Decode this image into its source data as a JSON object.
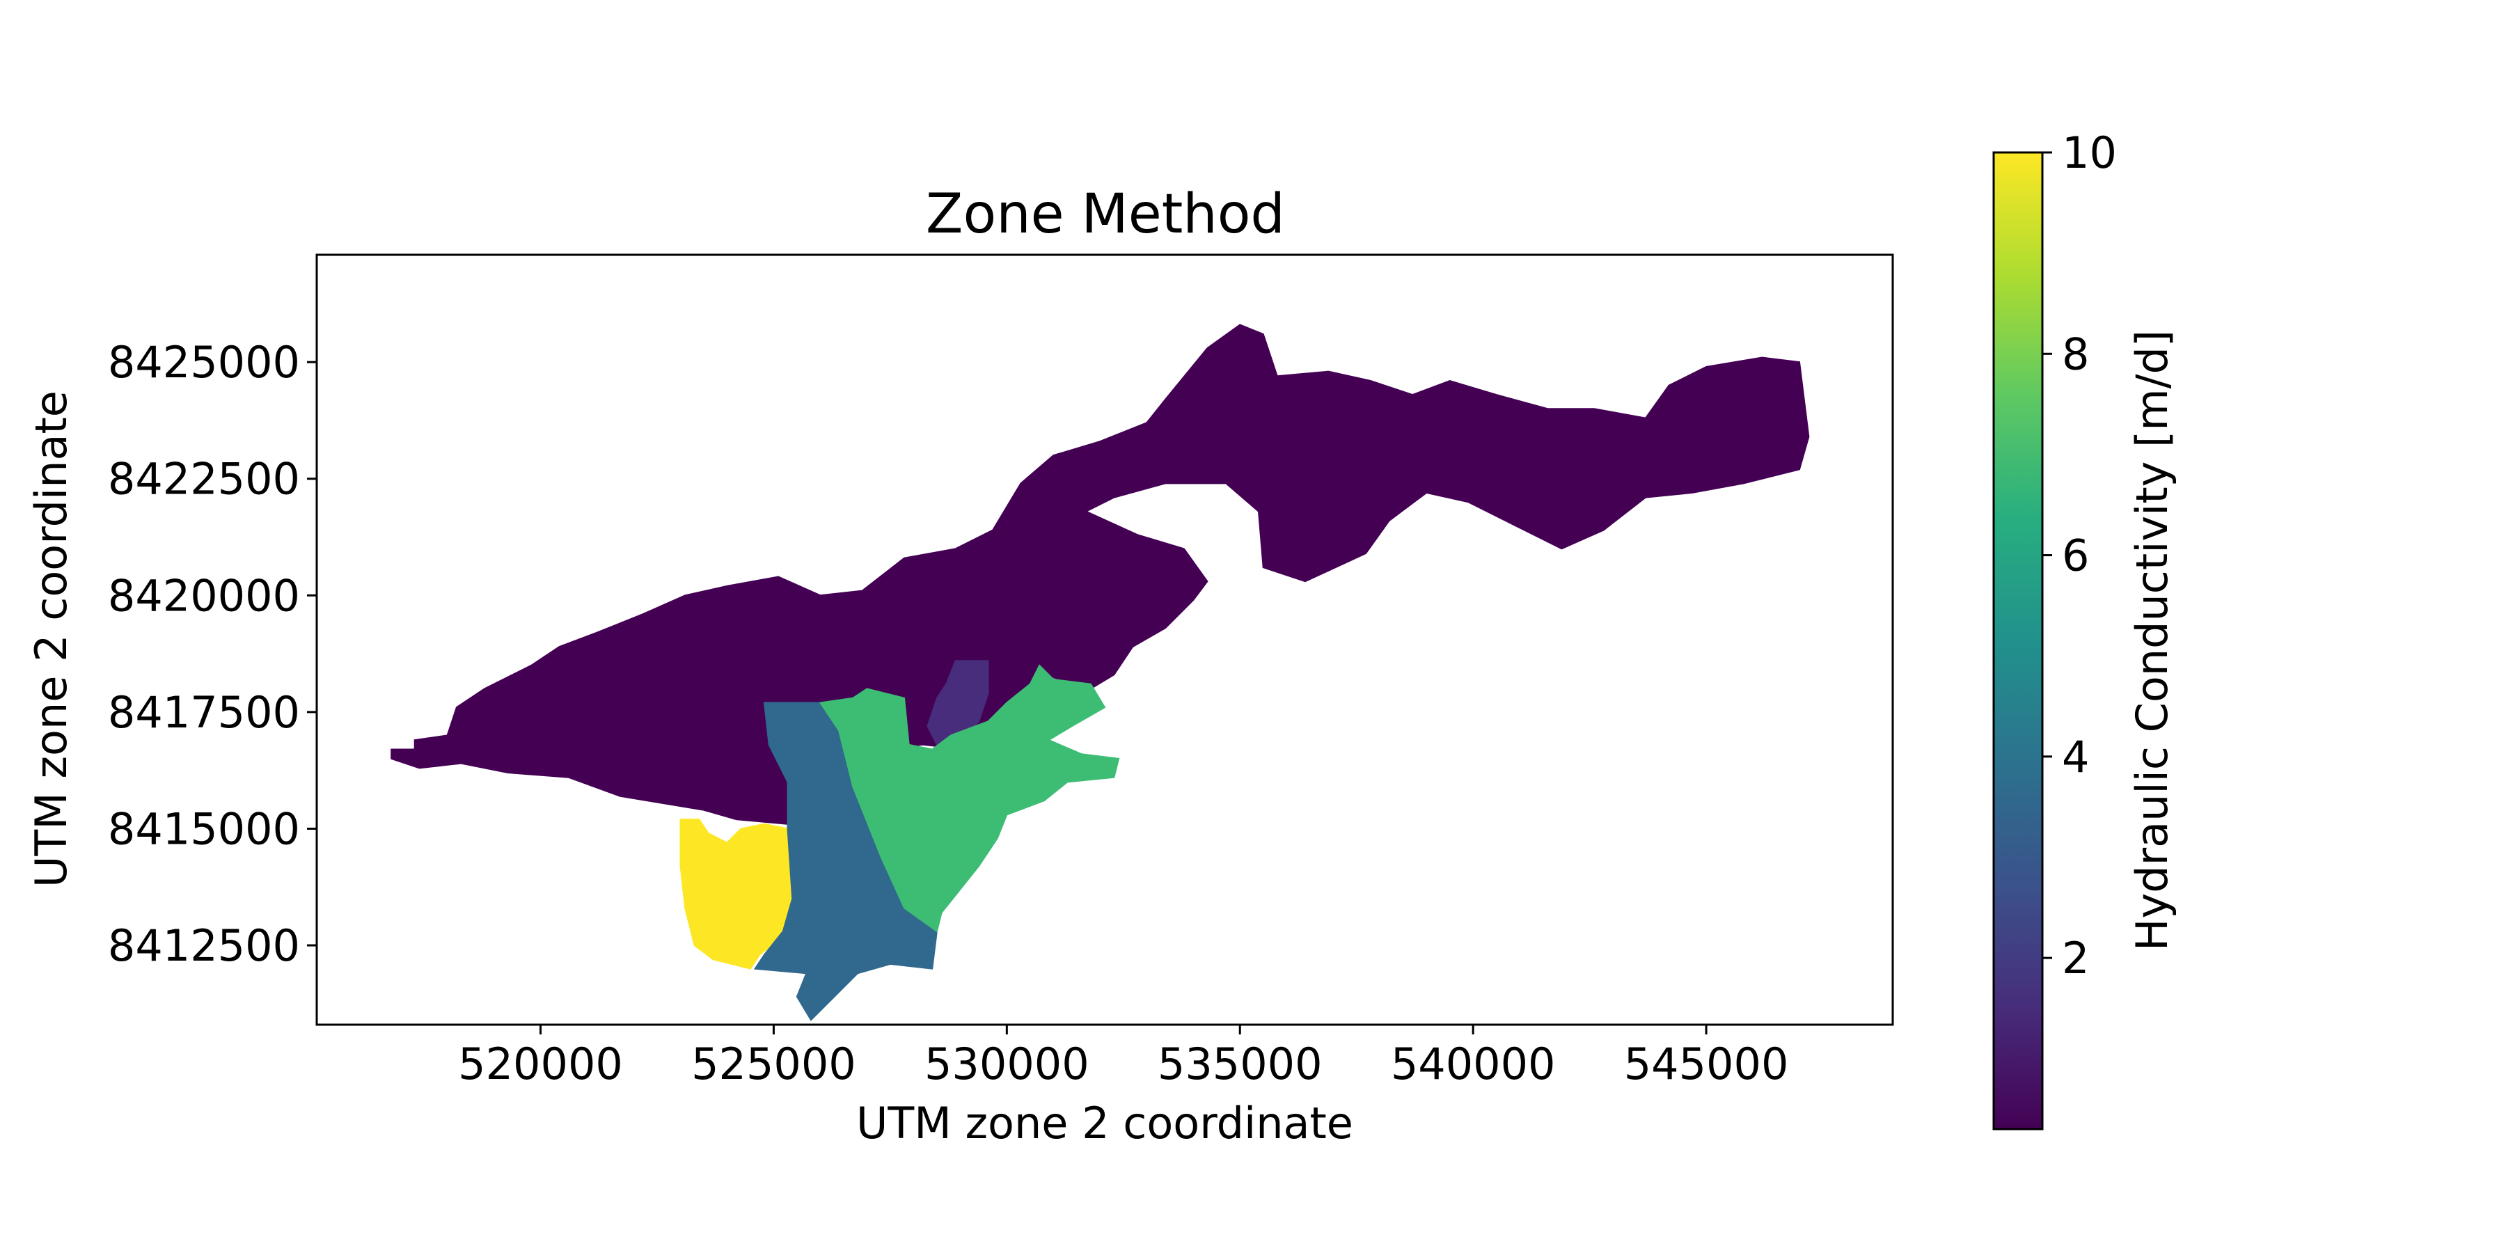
{
  "chart_data": {
    "type": "heatmap",
    "title": "Zone Method",
    "xlabel": "UTM zone 2 coordinate",
    "ylabel": "UTM zone 2 coordinate",
    "xlim": [
      515200,
      549000
    ],
    "ylim": [
      8410800,
      8427300
    ],
    "x_ticks": [
      520000,
      525000,
      530000,
      535000,
      540000,
      545000
    ],
    "y_ticks": [
      8412500,
      8415000,
      8417500,
      8420000,
      8422500,
      8425000
    ],
    "x_tick_labels": [
      "520000",
      "525000",
      "530000",
      "535000",
      "540000",
      "545000"
    ],
    "y_tick_labels": [
      "8412500",
      "8415000",
      "8417500",
      "8420000",
      "8422500",
      "8425000"
    ],
    "grid": false,
    "colorbar": {
      "label": "Hydraulic Conductivity [m/d]",
      "colormap": "viridis",
      "range": [
        0.3,
        10
      ],
      "ticks": [
        2,
        4,
        6,
        8,
        10
      ],
      "tick_labels": [
        "2",
        "4",
        "6",
        "8",
        "10"
      ]
    },
    "zones": [
      {
        "value": 0.3,
        "color": "#440154",
        "outline": [
          [
            516800,
            8416700
          ],
          [
            517300,
            8416700
          ],
          [
            517300,
            8416900
          ],
          [
            518000,
            8417000
          ],
          [
            518200,
            8417600
          ],
          [
            518800,
            8418000
          ],
          [
            519800,
            8418500
          ],
          [
            520400,
            8418900
          ],
          [
            521200,
            8419200
          ],
          [
            522200,
            8419600
          ],
          [
            523100,
            8420000
          ],
          [
            524000,
            8420200
          ],
          [
            525100,
            8420400
          ],
          [
            526000,
            8420000
          ],
          [
            526900,
            8420100
          ],
          [
            527800,
            8420800
          ],
          [
            528900,
            8421000
          ],
          [
            529700,
            8421400
          ],
          [
            530300,
            8422400
          ],
          [
            531000,
            8423000
          ],
          [
            532000,
            8423300
          ],
          [
            533000,
            8423700
          ],
          [
            533400,
            8424200
          ],
          [
            534300,
            8425300
          ],
          [
            535000,
            8425800
          ],
          [
            535500,
            8425600
          ],
          [
            535800,
            8424700
          ],
          [
            536900,
            8424800
          ],
          [
            537800,
            8424600
          ],
          [
            538700,
            8424300
          ],
          [
            539500,
            8424600
          ],
          [
            540500,
            8424300
          ],
          [
            541600,
            8424000
          ],
          [
            542600,
            8424000
          ],
          [
            543700,
            8423800
          ],
          [
            544200,
            8424500
          ],
          [
            545000,
            8424900
          ],
          [
            546200,
            8425100
          ],
          [
            547000,
            8425000
          ],
          [
            547200,
            8423400
          ],
          [
            547000,
            8422700
          ],
          [
            545800,
            8422400
          ],
          [
            544700,
            8422200
          ],
          [
            543700,
            8422100
          ],
          [
            542800,
            8421400
          ],
          [
            541900,
            8421000
          ],
          [
            540900,
            8421500
          ],
          [
            539900,
            8422000
          ],
          [
            539000,
            8422200
          ],
          [
            538200,
            8421600
          ],
          [
            537700,
            8420900
          ],
          [
            536400,
            8420300
          ],
          [
            535500,
            8420600
          ],
          [
            535400,
            8421800
          ],
          [
            534700,
            8422400
          ],
          [
            533400,
            8422400
          ],
          [
            532300,
            8422100
          ],
          [
            531700,
            8421800
          ],
          [
            532800,
            8421300
          ],
          [
            533800,
            8421000
          ],
          [
            534300,
            8420300
          ],
          [
            534000,
            8419900
          ],
          [
            533400,
            8419300
          ],
          [
            532700,
            8418900
          ],
          [
            532300,
            8418300
          ],
          [
            531800,
            8418000
          ],
          [
            530800,
            8418300
          ],
          [
            530500,
            8417800
          ],
          [
            530000,
            8417100
          ],
          [
            529100,
            8416700
          ],
          [
            528200,
            8416800
          ],
          [
            527300,
            8416700
          ],
          [
            526800,
            8416600
          ],
          [
            526100,
            8416100
          ],
          [
            525300,
            8415100
          ],
          [
            524200,
            8415200
          ],
          [
            523500,
            8415400
          ],
          [
            522900,
            8415500
          ],
          [
            521700,
            8415700
          ],
          [
            520600,
            8416100
          ],
          [
            519300,
            8416200
          ],
          [
            518300,
            8416400
          ],
          [
            517400,
            8416300
          ],
          [
            516800,
            8416500
          ]
        ]
      },
      {
        "value": 1.0,
        "color": "#472d7b",
        "outline": [
          [
            528900,
            8418600
          ],
          [
            529600,
            8418600
          ],
          [
            529600,
            8417900
          ],
          [
            529400,
            8417300
          ],
          [
            529000,
            8416900
          ],
          [
            528500,
            8416800
          ],
          [
            528300,
            8417200
          ],
          [
            528500,
            8417800
          ],
          [
            528700,
            8418100
          ]
        ]
      },
      {
        "value": 10.0,
        "color": "#fde725",
        "outline": [
          [
            523000,
            8415200
          ],
          [
            523400,
            8415200
          ],
          [
            523600,
            8414900
          ],
          [
            524000,
            8414700
          ],
          [
            524300,
            8415000
          ],
          [
            524800,
            8415100
          ],
          [
            525300,
            8415000
          ],
          [
            525400,
            8413500
          ],
          [
            525200,
            8412700
          ],
          [
            524700,
            8412300
          ],
          [
            524500,
            8412000
          ],
          [
            523700,
            8412200
          ],
          [
            523300,
            8412500
          ],
          [
            523100,
            8413300
          ],
          [
            523000,
            8414200
          ]
        ]
      },
      {
        "value": 4.0,
        "color": "#31688e",
        "outline": [
          [
            524800,
            8417700
          ],
          [
            526000,
            8417700
          ],
          [
            526400,
            8417100
          ],
          [
            526700,
            8415900
          ],
          [
            527300,
            8414400
          ],
          [
            527800,
            8413300
          ],
          [
            528500,
            8412800
          ],
          [
            528400,
            8412000
          ],
          [
            527500,
            8412100
          ],
          [
            526800,
            8411900
          ],
          [
            526200,
            8411300
          ],
          [
            525800,
            8410900
          ],
          [
            525500,
            8411400
          ],
          [
            525700,
            8411900
          ],
          [
            524600,
            8412000
          ],
          [
            524800,
            8412300
          ],
          [
            525200,
            8412800
          ],
          [
            525400,
            8413500
          ],
          [
            525300,
            8415000
          ],
          [
            525300,
            8416000
          ],
          [
            524900,
            8416800
          ]
        ]
      },
      {
        "value": 6.5,
        "color": "#3dbc74",
        "outline": [
          [
            526000,
            8417700
          ],
          [
            526700,
            8417800
          ],
          [
            527000,
            8418000
          ],
          [
            527800,
            8417800
          ],
          [
            527900,
            8416800
          ],
          [
            528400,
            8416700
          ],
          [
            528800,
            8417000
          ],
          [
            529600,
            8417300
          ],
          [
            530000,
            8417700
          ],
          [
            530500,
            8418100
          ],
          [
            530700,
            8418500
          ],
          [
            531000,
            8418200
          ],
          [
            531800,
            8418100
          ],
          [
            532100,
            8417600
          ],
          [
            531400,
            8417200
          ],
          [
            530900,
            8416900
          ],
          [
            531600,
            8416600
          ],
          [
            532400,
            8416500
          ],
          [
            532300,
            8416100
          ],
          [
            531300,
            8416000
          ],
          [
            530800,
            8415600
          ],
          [
            530000,
            8415300
          ],
          [
            529800,
            8414800
          ],
          [
            529400,
            8414200
          ],
          [
            529000,
            8413700
          ],
          [
            528600,
            8413200
          ],
          [
            528500,
            8412800
          ],
          [
            527800,
            8413300
          ],
          [
            527300,
            8414400
          ],
          [
            526700,
            8415900
          ],
          [
            526400,
            8417100
          ]
        ]
      }
    ]
  }
}
